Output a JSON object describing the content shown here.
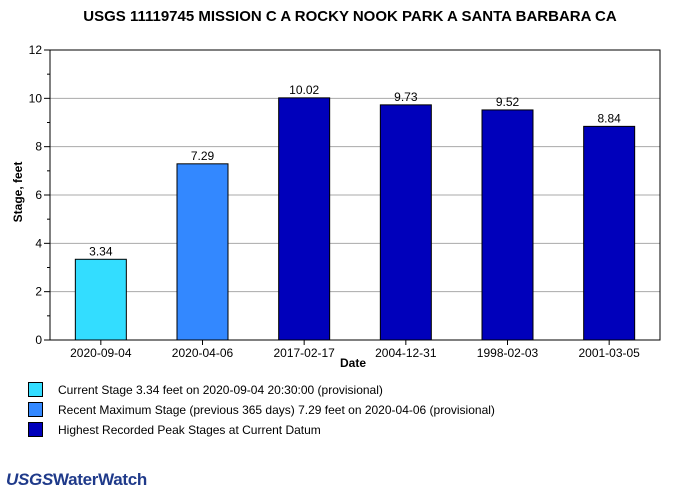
{
  "chart_data": {
    "type": "bar",
    "title": "USGS 11119745 MISSION C A ROCKY NOOK PARK A SANTA BARBARA CA",
    "xlabel": "Date",
    "ylabel": "Stage, feet",
    "ylim": [
      0,
      12
    ],
    "yticks": [
      "0",
      "2",
      "4",
      "6",
      "8",
      "10",
      "12"
    ],
    "grid": true,
    "categories": [
      "2020-09-04",
      "2020-04-06",
      "2017-02-17",
      "2004-12-31",
      "1998-02-03",
      "2001-03-05"
    ],
    "values": [
      3.34,
      7.29,
      10.02,
      9.73,
      9.52,
      8.84
    ],
    "value_labels": [
      "3.34",
      "7.29",
      "10.02",
      "9.73",
      "9.52",
      "8.84"
    ],
    "bar_series": [
      0,
      1,
      2,
      2,
      2,
      2
    ],
    "series_colors": [
      "#33ddff",
      "#3388ff",
      "#0000bb"
    ]
  },
  "legend": [
    {
      "label": "Current Stage 3.34 feet on 2020-09-04 20:30:00 (provisional)",
      "color": "#33ddff"
    },
    {
      "label": "Recent Maximum Stage (previous 365 days) 7.29 feet on 2020-04-06 (provisional)",
      "color": "#3388ff"
    },
    {
      "label": "Highest Recorded Peak Stages at Current Datum",
      "color": "#0000bb"
    }
  ],
  "logo": {
    "usgs": "USGS",
    "rest": "WaterWatch"
  }
}
